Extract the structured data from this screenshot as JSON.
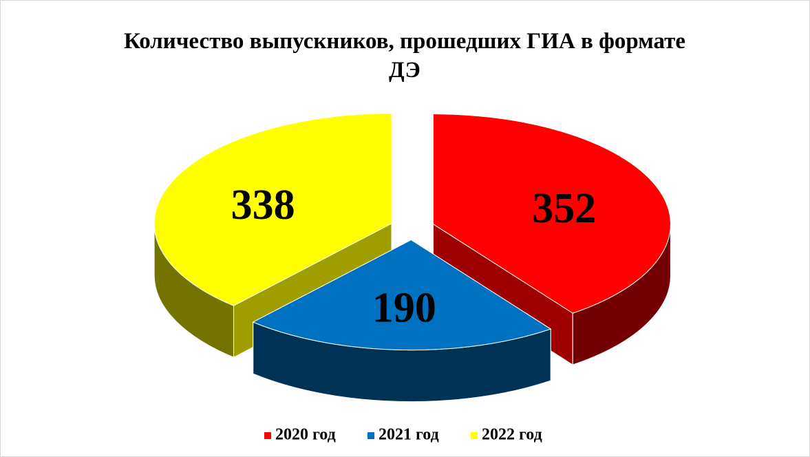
{
  "chart_data": {
    "type": "pie3d",
    "title": "Количество выпускников, прошедших ГИА в формате ДЭ",
    "categories": [
      "2020 год",
      "2021 год",
      "2022 год"
    ],
    "values": [
      352,
      190,
      338
    ],
    "colors": [
      "#ff0000",
      "#0070c0",
      "#ffff00"
    ],
    "legend": "bottom"
  }
}
